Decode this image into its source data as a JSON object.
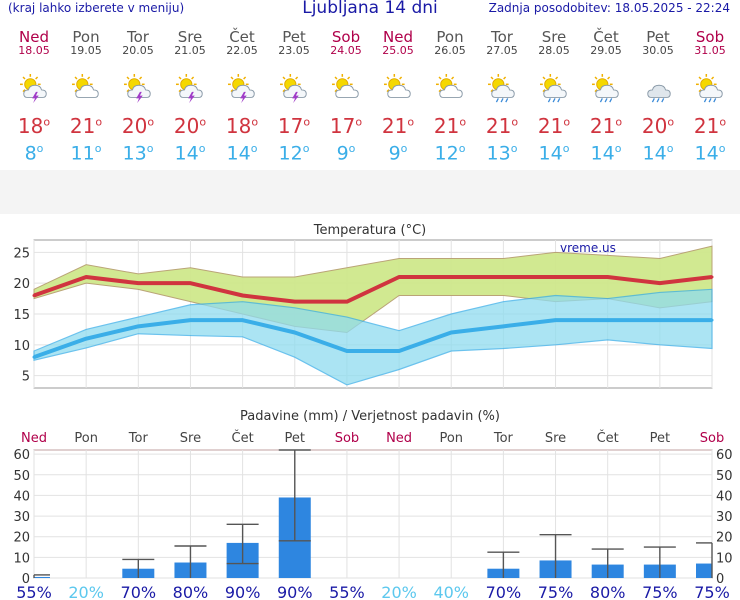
{
  "header": {
    "menu_hint": "(kraj lahko izberete v meniju)",
    "title": "Ljubljana 14 dni",
    "updated": "Zadnja posodobitev: 18.05.2025 - 22:24"
  },
  "days": [
    {
      "name": "Ned",
      "date": "18.05",
      "weekend": true,
      "icon": "sun-cloud-lightning-icon",
      "tmax": "18",
      "tmin": "8"
    },
    {
      "name": "Pon",
      "date": "19.05",
      "weekend": false,
      "icon": "sun-cloud-icon",
      "tmax": "21",
      "tmin": "11"
    },
    {
      "name": "Tor",
      "date": "20.05",
      "weekend": false,
      "icon": "sun-cloud-lightning-icon",
      "tmax": "20",
      "tmin": "13"
    },
    {
      "name": "Sre",
      "date": "21.05",
      "weekend": false,
      "icon": "sun-cloud-lightning-icon",
      "tmax": "20",
      "tmin": "14"
    },
    {
      "name": "Čet",
      "date": "22.05",
      "weekend": false,
      "icon": "sun-cloud-lightning-icon",
      "tmax": "18",
      "tmin": "14"
    },
    {
      "name": "Pet",
      "date": "23.05",
      "weekend": false,
      "icon": "sun-cloud-lightning-icon",
      "tmax": "17",
      "tmin": "12"
    },
    {
      "name": "Sob",
      "date": "24.05",
      "weekend": true,
      "icon": "sun-cloud-icon",
      "tmax": "17",
      "tmin": "9"
    },
    {
      "name": "Ned",
      "date": "25.05",
      "weekend": true,
      "icon": "sun-cloud-icon",
      "tmax": "21",
      "tmin": "9"
    },
    {
      "name": "Pon",
      "date": "26.05",
      "weekend": false,
      "icon": "sun-cloud-icon",
      "tmax": "21",
      "tmin": "12"
    },
    {
      "name": "Tor",
      "date": "27.05",
      "weekend": false,
      "icon": "sun-cloud-rain-icon",
      "tmax": "21",
      "tmin": "13"
    },
    {
      "name": "Sre",
      "date": "28.05",
      "weekend": false,
      "icon": "sun-cloud-rain-icon",
      "tmax": "21",
      "tmin": "14"
    },
    {
      "name": "Čet",
      "date": "29.05",
      "weekend": false,
      "icon": "sun-cloud-rain-icon",
      "tmax": "21",
      "tmin": "14"
    },
    {
      "name": "Pet",
      "date": "30.05",
      "weekend": false,
      "icon": "cloud-rain-icon",
      "tmax": "20",
      "tmin": "14"
    },
    {
      "name": "Sob",
      "date": "31.05",
      "weekend": true,
      "icon": "sun-cloud-rain-icon",
      "tmax": "21",
      "tmin": "14"
    }
  ],
  "colors": {
    "max_line": "#d0343f",
    "min_line": "#3aaee8",
    "max_band": "#cfe88c",
    "min_band": "#8fdcef",
    "overlap_band": "#7fcf80",
    "bar": "#2e86e0",
    "weekend": "#b0004a",
    "blue_text": "#1a1aa6"
  },
  "chart_data": [
    {
      "type": "line",
      "title": "Temperatura (°C)",
      "watermark": "vreme.us",
      "ylim": [
        3,
        27
      ],
      "yticks": [
        5,
        10,
        15,
        20,
        25
      ],
      "grid": true,
      "series": [
        {
          "values": [
            18,
            21,
            20,
            20,
            18,
            17,
            17,
            21,
            21,
            21,
            21,
            21,
            20,
            21
          ]
        },
        {
          "values": [
            8,
            11,
            13,
            14,
            14,
            12,
            9,
            9,
            12,
            13,
            14,
            14,
            14,
            14
          ]
        }
      ],
      "max_band": {
        "upper": [
          19,
          23,
          21.5,
          22.5,
          21,
          21,
          22.5,
          24,
          24,
          24,
          25,
          24.5,
          24,
          26
        ],
        "lower": [
          17.5,
          20,
          19,
          17,
          15,
          13,
          12,
          18,
          18,
          18,
          17,
          17.5,
          16,
          17
        ]
      },
      "min_band": {
        "upper": [
          9,
          12.5,
          14.5,
          16.5,
          17,
          16,
          14.5,
          12.3,
          15,
          17,
          18,
          17.5,
          18.5,
          19
        ],
        "lower": [
          7.5,
          9.5,
          11.8,
          11.5,
          11.3,
          8,
          3.5,
          6,
          9,
          9.4,
          10,
          10.8,
          10,
          9.4
        ]
      }
    },
    {
      "type": "bar",
      "title": "Padavine (mm) / Verjetnost padavin (%)",
      "categories": [
        "Ned",
        "Pon",
        "Tor",
        "Sre",
        "Čet",
        "Pet",
        "Sob",
        "Ned",
        "Pon",
        "Tor",
        "Sre",
        "Čet",
        "Pet",
        "Sob"
      ],
      "values": [
        0.5,
        0,
        4.5,
        7.5,
        17,
        39,
        0,
        0,
        0,
        4.5,
        8.5,
        6.5,
        6.5,
        7
      ],
      "error_low": [
        0,
        0,
        0,
        0,
        7,
        18,
        0,
        0,
        0,
        0,
        0,
        0,
        0,
        0
      ],
      "error_high": [
        1.5,
        0,
        9,
        15.5,
        26,
        62,
        0,
        0,
        0,
        12.5,
        21,
        14,
        15,
        17
      ],
      "probabilities": [
        "55%",
        "20%",
        "70%",
        "80%",
        "90%",
        "90%",
        "55%",
        "20%",
        "40%",
        "70%",
        "75%",
        "80%",
        "75%",
        "75%"
      ],
      "ylim": [
        0,
        62
      ],
      "yticks": [
        0,
        10,
        20,
        30,
        40,
        50,
        60
      ],
      "grid": true
    }
  ]
}
